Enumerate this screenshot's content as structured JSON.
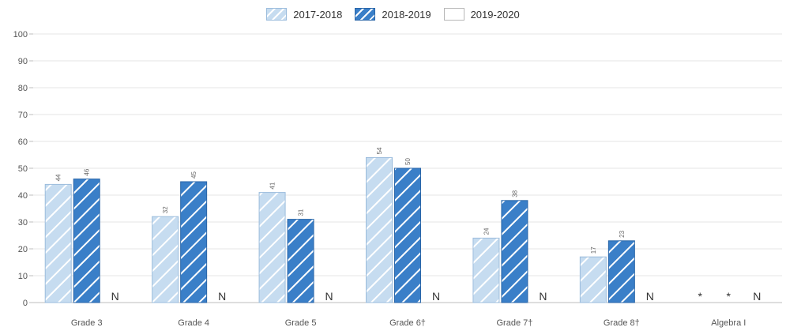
{
  "chart_data": {
    "type": "bar",
    "categories": [
      "Grade 3",
      "Grade 4",
      "Grade 5",
      "Grade 6†",
      "Grade 7†",
      "Grade 8†",
      "Algebra I"
    ],
    "series": [
      {
        "name": "2017-2018",
        "values": [
          44,
          32,
          41,
          54,
          24,
          17,
          null
        ],
        "labels": [
          "44",
          "32",
          "41",
          "54",
          "24",
          "17",
          "*"
        ],
        "color": "#c6dcf0",
        "border": "#9bbcdc",
        "stripe": "#ffffff"
      },
      {
        "name": "2018-2019",
        "values": [
          46,
          45,
          31,
          50,
          38,
          23,
          null
        ],
        "labels": [
          "46",
          "45",
          "31",
          "50",
          "38",
          "23",
          "*"
        ],
        "color": "#3a7fc8",
        "border": "#2a66a8",
        "stripe": "#ffffff"
      },
      {
        "name": "2019-2020",
        "values": [
          null,
          null,
          null,
          null,
          null,
          null,
          null
        ],
        "labels": [
          "N",
          "N",
          "N",
          "N",
          "N",
          "N",
          "N"
        ],
        "color": "#ffffff",
        "border": "#b8b8b8",
        "stripe": "#ffffff"
      }
    ],
    "ylim": [
      0,
      100
    ],
    "yticks": [
      0,
      10,
      20,
      30,
      40,
      50,
      60,
      70,
      80,
      90,
      100
    ],
    "grid": true,
    "legend_position": "top-center",
    "xlabel": "",
    "ylabel": ""
  }
}
